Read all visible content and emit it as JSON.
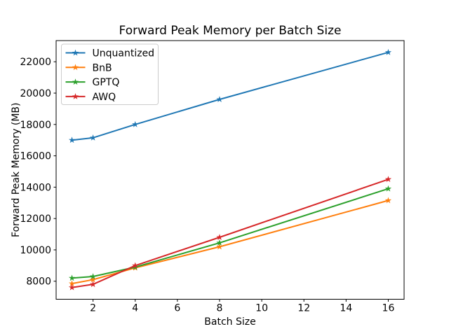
{
  "window": {
    "background": "#ffffff"
  },
  "chart_data": {
    "type": "line",
    "title": "Forward Peak Memory per Batch Size",
    "xlabel": "Batch Size",
    "ylabel": "Forward Peak Memory (MB)",
    "x": [
      1,
      2,
      4,
      8,
      16
    ],
    "series": [
      {
        "name": "Unquantized",
        "color": "#1f77b4",
        "marker": "star",
        "values": [
          17000,
          17150,
          18000,
          19600,
          22600
        ]
      },
      {
        "name": "BnB",
        "color": "#ff7f0e",
        "marker": "star",
        "values": [
          7850,
          8100,
          8850,
          10200,
          13150
        ]
      },
      {
        "name": "GPTQ",
        "color": "#2ca02c",
        "marker": "star",
        "values": [
          8200,
          8300,
          8900,
          10450,
          13900
        ]
      },
      {
        "name": "AWQ",
        "color": "#d62728",
        "marker": "star",
        "values": [
          7600,
          7800,
          9000,
          10800,
          14500
        ]
      }
    ],
    "xlim": [
      0.25,
      16.75
    ],
    "ylim": [
      6850,
      23350
    ],
    "xticks": [
      2,
      4,
      6,
      8,
      10,
      12,
      14,
      16
    ],
    "yticks": [
      8000,
      10000,
      12000,
      14000,
      16000,
      18000,
      20000,
      22000
    ],
    "grid": false,
    "legend": {
      "position": "upper-left",
      "border_color": "#cccccc",
      "background": "#ffffff"
    },
    "axis_color": "#000000"
  }
}
